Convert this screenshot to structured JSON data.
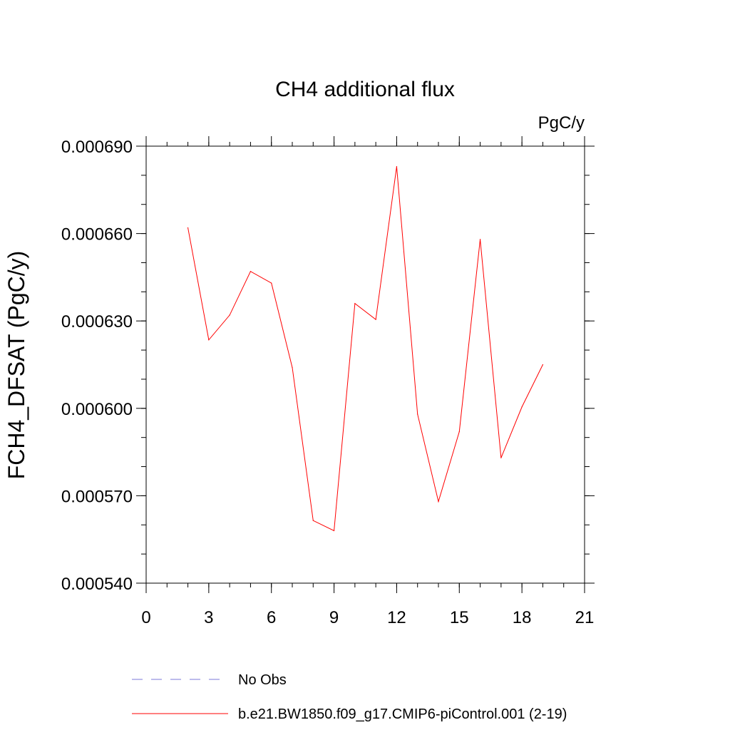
{
  "chart_data": {
    "type": "line",
    "title": "CH4 additional flux",
    "units_label": "PgC/y",
    "ylabel": "FCH4_DFSAT  (PgC/y)",
    "xlabel": "",
    "xlim": [
      0,
      21
    ],
    "ylim": [
      0.00054,
      0.00069
    ],
    "x_ticks": [
      0,
      3,
      6,
      9,
      12,
      15,
      18,
      21
    ],
    "x_tick_labels": [
      "0",
      "3",
      "6",
      "9",
      "12",
      "15",
      "18",
      "21"
    ],
    "y_ticks": [
      0.00054,
      0.00057,
      0.0006,
      0.00063,
      0.00066,
      0.00069
    ],
    "y_tick_labels": [
      "0.000540",
      "0.000570",
      "0.000600",
      "0.000630",
      "0.000660",
      "0.000690"
    ],
    "x_minor_step": 1,
    "y_minor_step": 1e-05,
    "grid": false,
    "legend_position": "bottom",
    "series": [
      {
        "name": "b.e21.BW1850.f09_g17.CMIP6-piControl.001 (2-19)",
        "color": "#ff0000",
        "style": "solid",
        "x": [
          2,
          3,
          4,
          5,
          6,
          7,
          8,
          9,
          10,
          11,
          12,
          13,
          14,
          15,
          16,
          17,
          18,
          19
        ],
        "values": [
          0.000662,
          0.0006235,
          0.000632,
          0.000647,
          0.000643,
          0.000614,
          0.0005615,
          0.000558,
          0.000636,
          0.0006305,
          0.000683,
          0.000598,
          0.000568,
          0.000592,
          0.000658,
          0.000583,
          0.0006005,
          0.000615
        ]
      }
    ],
    "legend": [
      {
        "label": "No Obs",
        "color": "#7b78d8",
        "style": "dashed"
      },
      {
        "label": "b.e21.BW1850.f09_g17.CMIP6-piControl.001 (2-19)",
        "color": "#ff0000",
        "style": "solid"
      }
    ]
  }
}
